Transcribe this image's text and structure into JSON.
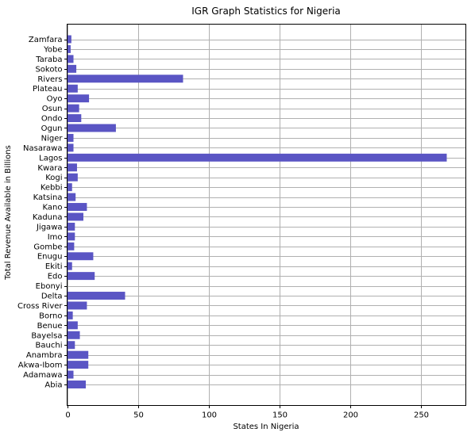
{
  "chart_data": {
    "type": "bar",
    "orientation": "horizontal",
    "title": "IGR Graph Statistics for Nigeria",
    "xlabel": "States In Nigeria",
    "ylabel": "Total Revenue Available in Billions",
    "xlim": [
      0,
      282
    ],
    "x_ticks": [
      0,
      50,
      100,
      150,
      200,
      250
    ],
    "grid": true,
    "bar_color": "#5a55c4",
    "categories": [
      "Abia",
      "Adamawa",
      "Akwa-Ibom",
      "Anambra",
      "Bauchi",
      "Bayelsa",
      "Benue",
      "Borno",
      "Cross River",
      "Delta",
      "Ebonyi",
      "Edo",
      "Ekiti",
      "Enugu",
      "Gombe",
      "Imo",
      "Jigawa",
      "Kaduna",
      "Kano",
      "Katsina",
      "Kebbi",
      "Kogi",
      "Kwara",
      "Lagos",
      "Nasarawa",
      "Niger",
      "Ogun",
      "Ondo",
      "Osun",
      "Oyo",
      "Plateau",
      "Rivers",
      "Sokoto",
      "Taraba",
      "Yobe",
      "Zamfara"
    ],
    "values": [
      13.2,
      4.5,
      15.0,
      15.0,
      5.5,
      9.0,
      7.5,
      4.0,
      14.0,
      41.0,
      0,
      19.5,
      3.5,
      18.5,
      5.0,
      5.5,
      5.5,
      11.5,
      14.0,
      6.0,
      3.5,
      7.5,
      7.0,
      268.5,
      4.5,
      4.5,
      34.5,
      10.0,
      8.5,
      15.5,
      7.5,
      82.0,
      6.5,
      4.5,
      2.5,
      3.0
    ]
  }
}
